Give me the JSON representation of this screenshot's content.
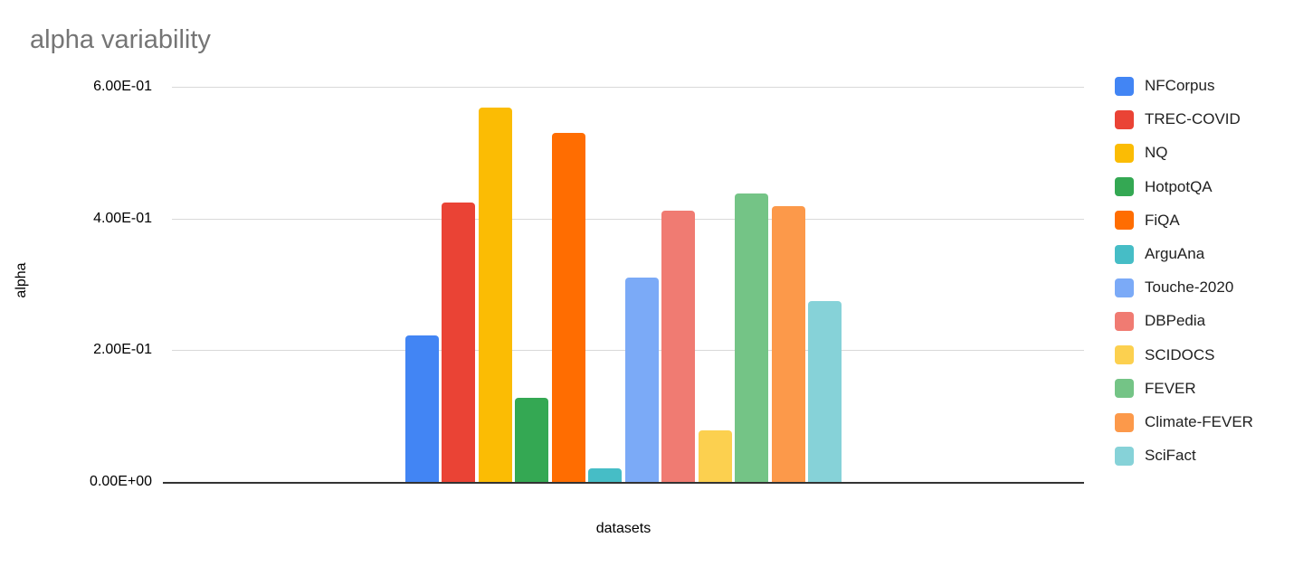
{
  "chart_data": {
    "type": "bar",
    "title": "alpha variability",
    "xlabel": "datasets",
    "ylabel": "alpha",
    "categories": [
      "NFCorpus",
      "TREC-COVID",
      "NQ",
      "HotpotQA",
      "FiQA",
      "ArguAna",
      "Touche-2020",
      "DBPedia",
      "SCIDOCS",
      "FEVER",
      "Climate-FEVER",
      "SciFact"
    ],
    "values": [
      0.222,
      0.425,
      0.569,
      0.128,
      0.53,
      0.021,
      0.31,
      0.412,
      0.079,
      0.438,
      0.419,
      0.275
    ],
    "colors": [
      "#4285F4",
      "#EA4335",
      "#FBBC04",
      "#34A853",
      "#FF6D01",
      "#46BDC6",
      "#7BAAF7",
      "#F07B72",
      "#FCD04F",
      "#74C486",
      "#FC994A",
      "#86D2D8"
    ],
    "legend": [
      "NFCorpus",
      "TREC-COVID",
      "NQ",
      "HotpotQA",
      "FiQA",
      "ArguAna",
      "Touche-2020",
      "DBPedia",
      "SCIDOCS",
      "FEVER",
      "Climate-FEVER",
      "SciFact"
    ],
    "legend_position": "right",
    "y_ticks": [
      {
        "label": "0.00E+00",
        "value": 0.0
      },
      {
        "label": "2.00E-01",
        "value": 0.2
      },
      {
        "label": "4.00E-01",
        "value": 0.4
      },
      {
        "label": "6.00E-01",
        "value": 0.6
      }
    ],
    "ylim": [
      0.0,
      0.6
    ],
    "grid": true,
    "title_color": "#757575",
    "gridline_color": "#d9d9d9",
    "axis_line_color": "#333333",
    "tick_label_color": "#000000",
    "legend_text_color": "#212121",
    "background_color": "#ffffff"
  }
}
